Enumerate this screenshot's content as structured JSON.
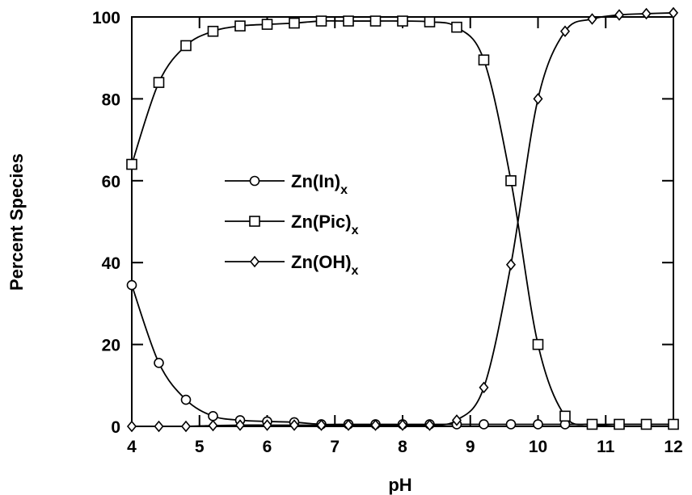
{
  "chart_data": {
    "type": "line",
    "title": "",
    "xlabel": "pH",
    "ylabel": "Percent Species",
    "xlim": [
      4,
      12
    ],
    "ylim": [
      0,
      100
    ],
    "xticks": [
      4,
      5,
      6,
      7,
      8,
      9,
      10,
      11,
      12
    ],
    "yticks": [
      0,
      20,
      40,
      60,
      80,
      100
    ],
    "grid": false,
    "legend_position": "center-left",
    "x": [
      4.0,
      4.4,
      4.8,
      5.2,
      5.6,
      6.0,
      6.4,
      6.8,
      7.2,
      7.6,
      8.0,
      8.4,
      8.8,
      9.2,
      9.6,
      10.0,
      10.4,
      10.8,
      11.2,
      11.6,
      12.0
    ],
    "series": [
      {
        "name": "Zn(In)",
        "subscript": "x",
        "marker": "circle",
        "values": [
          34.5,
          15.5,
          6.5,
          2.5,
          1.5,
          1.2,
          1.0,
          0.5,
          0.5,
          0.5,
          0.5,
          0.5,
          0.5,
          0.5,
          0.5,
          0.5,
          0.5,
          0.5,
          0.5,
          0.5,
          0.5
        ]
      },
      {
        "name": "Zn(Pic)",
        "subscript": "x",
        "marker": "square",
        "values": [
          64,
          84,
          93,
          96.5,
          97.8,
          98.2,
          98.5,
          99,
          99,
          99,
          99,
          98.8,
          97.5,
          89.5,
          60,
          20,
          2.5,
          0.5,
          0.5,
          0.5,
          0.5
        ]
      },
      {
        "name": "Zn(OH)",
        "subscript": "x",
        "marker": "diamond",
        "values": [
          0,
          0,
          0,
          0.2,
          0.3,
          0.3,
          0.3,
          0.3,
          0.3,
          0.3,
          0.3,
          0.3,
          1.5,
          9.5,
          39.5,
          80,
          96.5,
          99.5,
          100.5,
          100.8,
          101
        ]
      }
    ]
  }
}
